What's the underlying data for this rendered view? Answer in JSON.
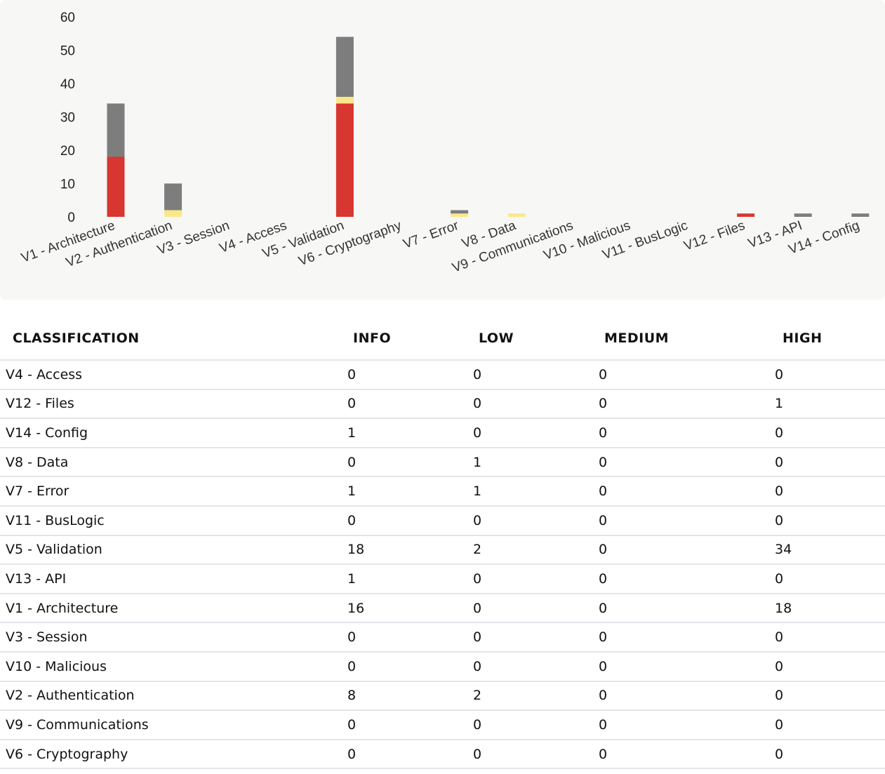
{
  "chart_data": {
    "type": "bar",
    "stacked": true,
    "categories": [
      "V1 - Architecture",
      "V2 - Authentication",
      "V3 - Session",
      "V4 - Access",
      "V5 - Validation",
      "V6 - Cryptography",
      "V7 - Error",
      "V8 - Data",
      "V9 - Communications",
      "V10 - Malicious",
      "V11 - BusLogic",
      "V12 - Files",
      "V13 - API",
      "V14 - Config"
    ],
    "series": [
      {
        "values": [
          18,
          0,
          0,
          0,
          34,
          0,
          0,
          0,
          0,
          0,
          0,
          1,
          0,
          0
        ],
        "color": "#d83630"
      },
      {
        "values": [
          0,
          0,
          0,
          0,
          0,
          0,
          0,
          0,
          0,
          0,
          0,
          0,
          0,
          0
        ],
        "color": "#f39c3a"
      },
      {
        "values": [
          0,
          2,
          0,
          0,
          2,
          0,
          1,
          1,
          0,
          0,
          0,
          0,
          0,
          0
        ],
        "color": "#fbe78a"
      },
      {
        "values": [
          16,
          8,
          0,
          0,
          18,
          0,
          1,
          0,
          0,
          0,
          0,
          0,
          1,
          1
        ],
        "color": "#7d7d7d"
      }
    ],
    "yticks": [
      "0",
      "10",
      "20",
      "30",
      "40",
      "50",
      "60"
    ],
    "ylim": [
      0,
      60
    ],
    "grid": false,
    "legend": "none"
  },
  "table": {
    "headers": [
      "CLASSIFICATION",
      "INFO",
      "LOW",
      "MEDIUM",
      "HIGH"
    ],
    "rows": [
      [
        "V4 - Access",
        "0",
        "0",
        "0",
        "0"
      ],
      [
        "V12 - Files",
        "0",
        "0",
        "0",
        "1"
      ],
      [
        "V14 - Config",
        "1",
        "0",
        "0",
        "0"
      ],
      [
        "V8 - Data",
        "0",
        "1",
        "0",
        "0"
      ],
      [
        "V7 - Error",
        "1",
        "1",
        "0",
        "0"
      ],
      [
        "V11 - BusLogic",
        "0",
        "0",
        "0",
        "0"
      ],
      [
        "V5 - Validation",
        "18",
        "2",
        "0",
        "34"
      ],
      [
        "V13 - API",
        "1",
        "0",
        "0",
        "0"
      ],
      [
        "V1 - Architecture",
        "16",
        "0",
        "0",
        "18"
      ],
      [
        "V3 - Session",
        "0",
        "0",
        "0",
        "0"
      ],
      [
        "V10 - Malicious",
        "0",
        "0",
        "0",
        "0"
      ],
      [
        "V2 - Authentication",
        "8",
        "2",
        "0",
        "0"
      ],
      [
        "V9 - Communications",
        "0",
        "0",
        "0",
        "0"
      ],
      [
        "V6 - Cryptography",
        "0",
        "0",
        "0",
        "0"
      ]
    ]
  }
}
